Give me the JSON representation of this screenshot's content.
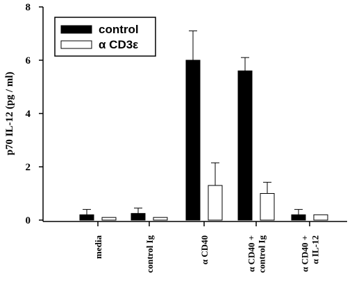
{
  "chart_data": {
    "type": "bar",
    "ylabel": "p70 IL-12 (pg / ml)",
    "ylim": [
      0,
      8
    ],
    "yticks": [
      0,
      2,
      4,
      6,
      8
    ],
    "categories": [
      [
        "media"
      ],
      [
        "control Ig"
      ],
      [
        "α CD40"
      ],
      [
        "α CD40 +",
        "control Ig"
      ],
      [
        "α CD40 +",
        "α IL-12"
      ]
    ],
    "series": [
      {
        "name": "control",
        "color": "#000000",
        "values": [
          0.2,
          0.25,
          6.0,
          5.6,
          0.2
        ],
        "errors": [
          0.2,
          0.2,
          1.1,
          0.5,
          0.2
        ]
      },
      {
        "name": "α CD3ε",
        "color": "#ffffff",
        "values": [
          0.1,
          0.1,
          1.3,
          1.0,
          0.2
        ],
        "errors": [
          0.0,
          0.0,
          0.85,
          0.42,
          0.0
        ]
      }
    ],
    "legend_position": "top-left",
    "grid": false
  }
}
